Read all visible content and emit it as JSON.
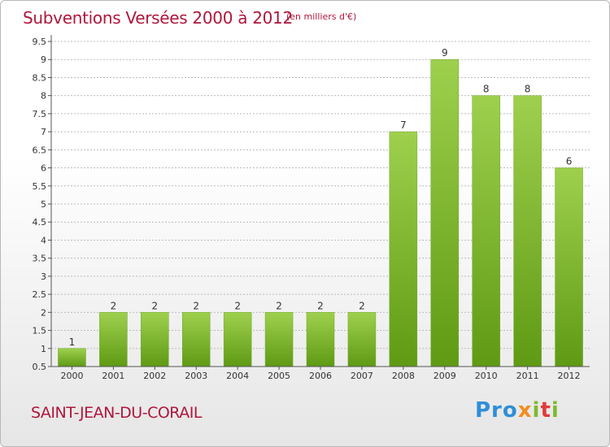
{
  "header": {
    "title": "Subventions Versées 2000 à 2012",
    "unit": "(en milliers d'€)"
  },
  "footer": {
    "commune": "SAINT-JEAN-DU-CORAIL",
    "brand": "Proxiti"
  },
  "colors": {
    "title": "#b0163c",
    "bar_top": "#9ed04e",
    "bar_bottom": "#5f9a14",
    "grid": "#bbbbbb"
  },
  "chart_data": {
    "type": "bar",
    "title": "Subventions Versées 2000 à 2012",
    "xlabel": "",
    "ylabel": "",
    "categories": [
      "2000",
      "2001",
      "2002",
      "2003",
      "2004",
      "2005",
      "2006",
      "2007",
      "2008",
      "2009",
      "2010",
      "2011",
      "2012"
    ],
    "values": [
      1,
      2,
      2,
      2,
      2,
      2,
      2,
      2,
      7,
      9,
      8,
      8,
      6
    ],
    "ylim": [
      0.5,
      9.5
    ],
    "yticks": [
      "0.5",
      "1",
      "1.5",
      "2",
      "2.5",
      "3",
      "3.5",
      "4",
      "4.5",
      "5",
      "5.5",
      "6",
      "6.5",
      "7",
      "7.5",
      "8",
      "8.5",
      "9",
      "9.5"
    ],
    "grid": true,
    "legend": "none"
  }
}
